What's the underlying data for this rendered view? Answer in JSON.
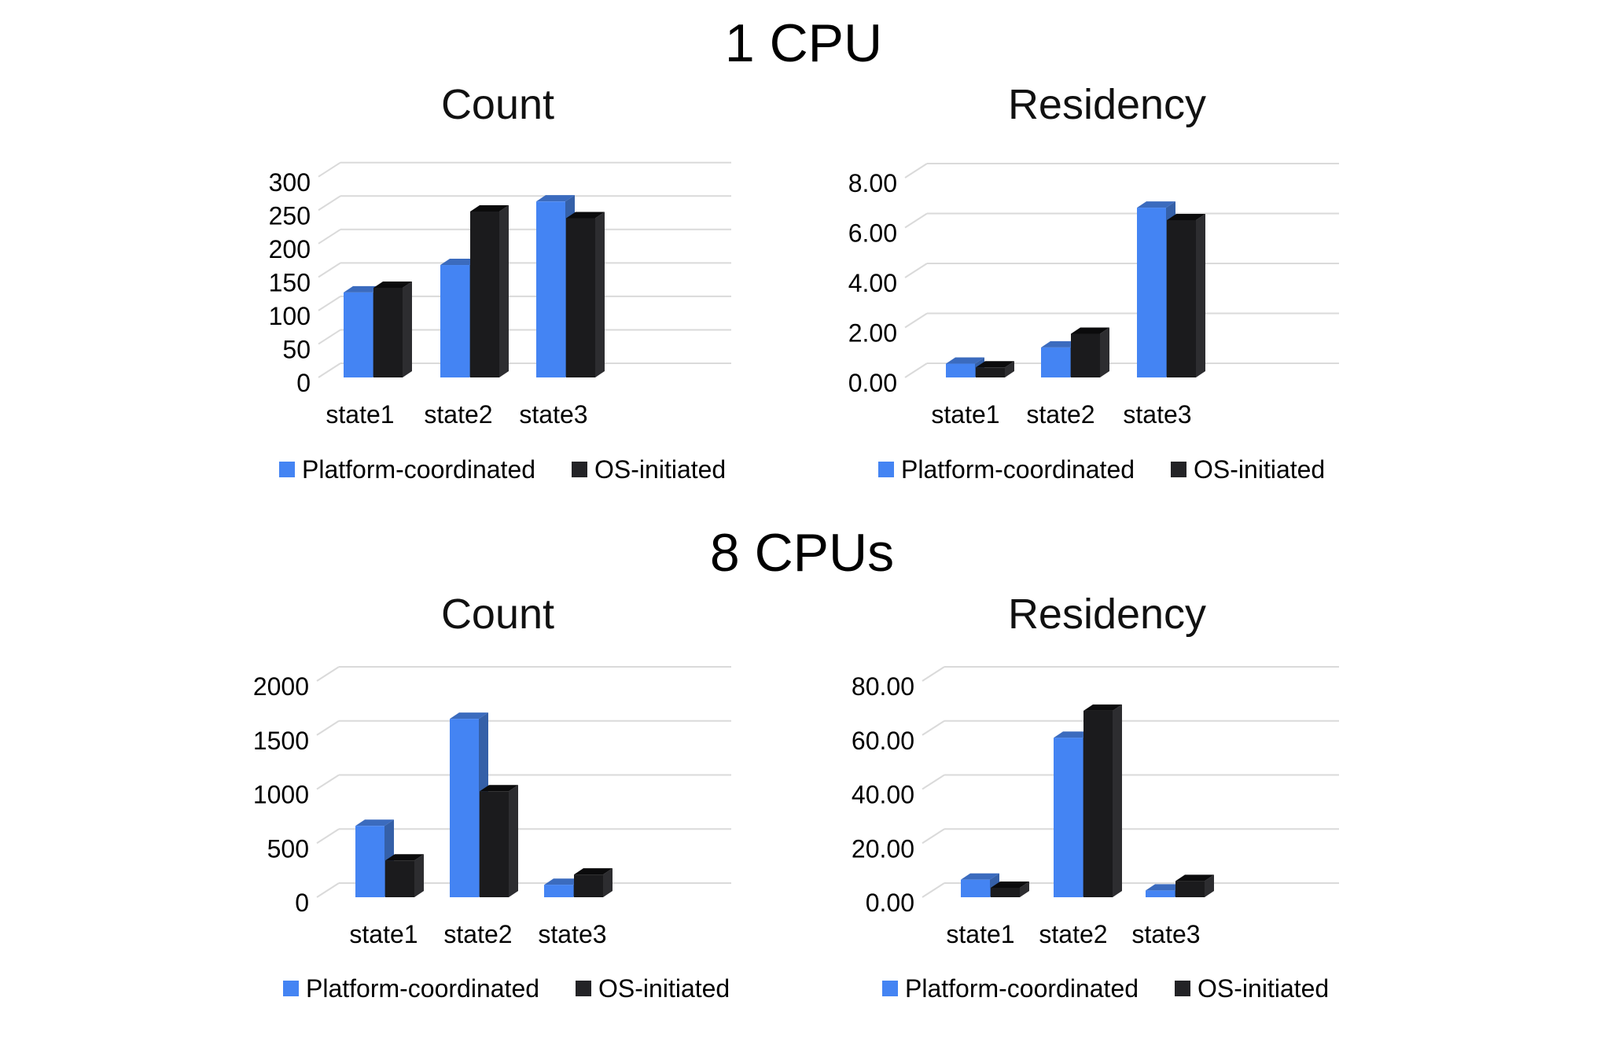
{
  "figure": {
    "groups": [
      {
        "title": "1 CPU"
      },
      {
        "title": "8 CPUs"
      }
    ]
  },
  "legend": {
    "series": [
      {
        "label": "Platform-coordinated",
        "color": "#4484F3"
      },
      {
        "label": "OS-initiated",
        "color": "#232326"
      }
    ]
  },
  "colors": {
    "background": "#FFFFFF",
    "grid": "#DADADA",
    "text": "#000000",
    "blue_front": "#4484F3",
    "blue_top": "#3B6BBE",
    "blue_side": "#3560A8",
    "black_front": "#1B1B1D",
    "black_top": "#0B0B0C",
    "black_side": "#2D2D30"
  },
  "chart_data": [
    {
      "type": "bar",
      "effect": "3d",
      "group": "1 CPU",
      "title": "Count",
      "categories": [
        "state1",
        "state2",
        "state3"
      ],
      "series": [
        {
          "name": "Platform-coordinated",
          "values": [
            127,
            168,
            263
          ]
        },
        {
          "name": "OS-initiated",
          "values": [
            134,
            248,
            238
          ]
        }
      ],
      "ylim": [
        0,
        300
      ],
      "ytick_step": 50,
      "ytick_labels": [
        "0",
        "50",
        "100",
        "150",
        "200",
        "250",
        "300"
      ],
      "grid": true,
      "legend_position": "bottom"
    },
    {
      "type": "bar",
      "effect": "3d",
      "group": "1 CPU",
      "title": "Residency",
      "categories": [
        "state1",
        "state2",
        "state3"
      ],
      "series": [
        {
          "name": "Platform-coordinated",
          "values": [
            0.55,
            1.2,
            6.8
          ]
        },
        {
          "name": "OS-initiated",
          "values": [
            0.4,
            1.75,
            6.3
          ]
        }
      ],
      "ylim": [
        0,
        8
      ],
      "ytick_step": 2,
      "ytick_labels": [
        "0.00",
        "2.00",
        "4.00",
        "6.00",
        "8.00"
      ],
      "grid": true,
      "legend_position": "bottom"
    },
    {
      "type": "bar",
      "effect": "3d",
      "group": "8 CPUs",
      "title": "Count",
      "categories": [
        "state1",
        "state2",
        "state3"
      ],
      "series": [
        {
          "name": "Platform-coordinated",
          "values": [
            660,
            1650,
            115
          ]
        },
        {
          "name": "OS-initiated",
          "values": [
            340,
            980,
            210
          ]
        }
      ],
      "ylim": [
        0,
        2000
      ],
      "ytick_step": 500,
      "ytick_labels": [
        "0",
        "500",
        "1000",
        "1500",
        "2000"
      ],
      "grid": true,
      "legend_position": "bottom"
    },
    {
      "type": "bar",
      "effect": "3d",
      "group": "8 CPUs",
      "title": "Residency",
      "categories": [
        "state1",
        "state2",
        "state3"
      ],
      "series": [
        {
          "name": "Platform-coordinated",
          "values": [
            6.5,
            59,
            2.5
          ]
        },
        {
          "name": "OS-initiated",
          "values": [
            3.5,
            69,
            6
          ]
        }
      ],
      "ylim": [
        0,
        80
      ],
      "ytick_step": 20,
      "ytick_labels": [
        "0.00",
        "20.00",
        "40.00",
        "60.00",
        "80.00"
      ],
      "grid": true,
      "legend_position": "bottom"
    }
  ]
}
